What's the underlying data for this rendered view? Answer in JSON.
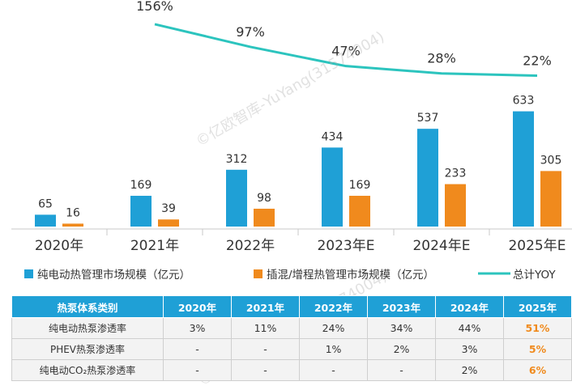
{
  "chart_data": {
    "type": "bar",
    "categories": [
      "2020年",
      "2021年",
      "2022年",
      "2023年E",
      "2024年E",
      "2025年E"
    ],
    "series": [
      {
        "name": "纯电动热管理市场规模（亿元）",
        "type": "bar",
        "color": "#1FA0D6",
        "values": [
          65,
          169,
          312,
          434,
          537,
          633
        ]
      },
      {
        "name": "插混/增程热管理市场规模（亿元）",
        "type": "bar",
        "color": "#F08A1D",
        "values": [
          16,
          39,
          98,
          169,
          233,
          305
        ]
      },
      {
        "name": "总计YOY",
        "type": "line",
        "color": "#2CC4BE",
        "x": [
          "2021年",
          "2022年",
          "2023年E",
          "2024年E",
          "2025年E"
        ],
        "values": [
          156,
          97,
          47,
          28,
          22
        ],
        "labels": [
          "156%",
          "97%",
          "47%",
          "28%",
          "22%"
        ]
      }
    ]
  },
  "watermark": "©亿欧智库-YuYang(31574004)",
  "table": {
    "header": [
      "热泵体系类别",
      "2020年",
      "2021年",
      "2022年",
      "2023年",
      "2024年",
      "2025年"
    ],
    "rows": [
      [
        "纯电动热泵渗透率",
        "3%",
        "11%",
        "24%",
        "34%",
        "44%",
        "51%"
      ],
      [
        "PHEV热泵渗透率",
        "-",
        "-",
        "1%",
        "2%",
        "3%",
        "5%"
      ],
      [
        "纯电动CO₂热泵渗透率",
        "-",
        "-",
        "-",
        "-",
        "2%",
        "6%"
      ]
    ]
  }
}
